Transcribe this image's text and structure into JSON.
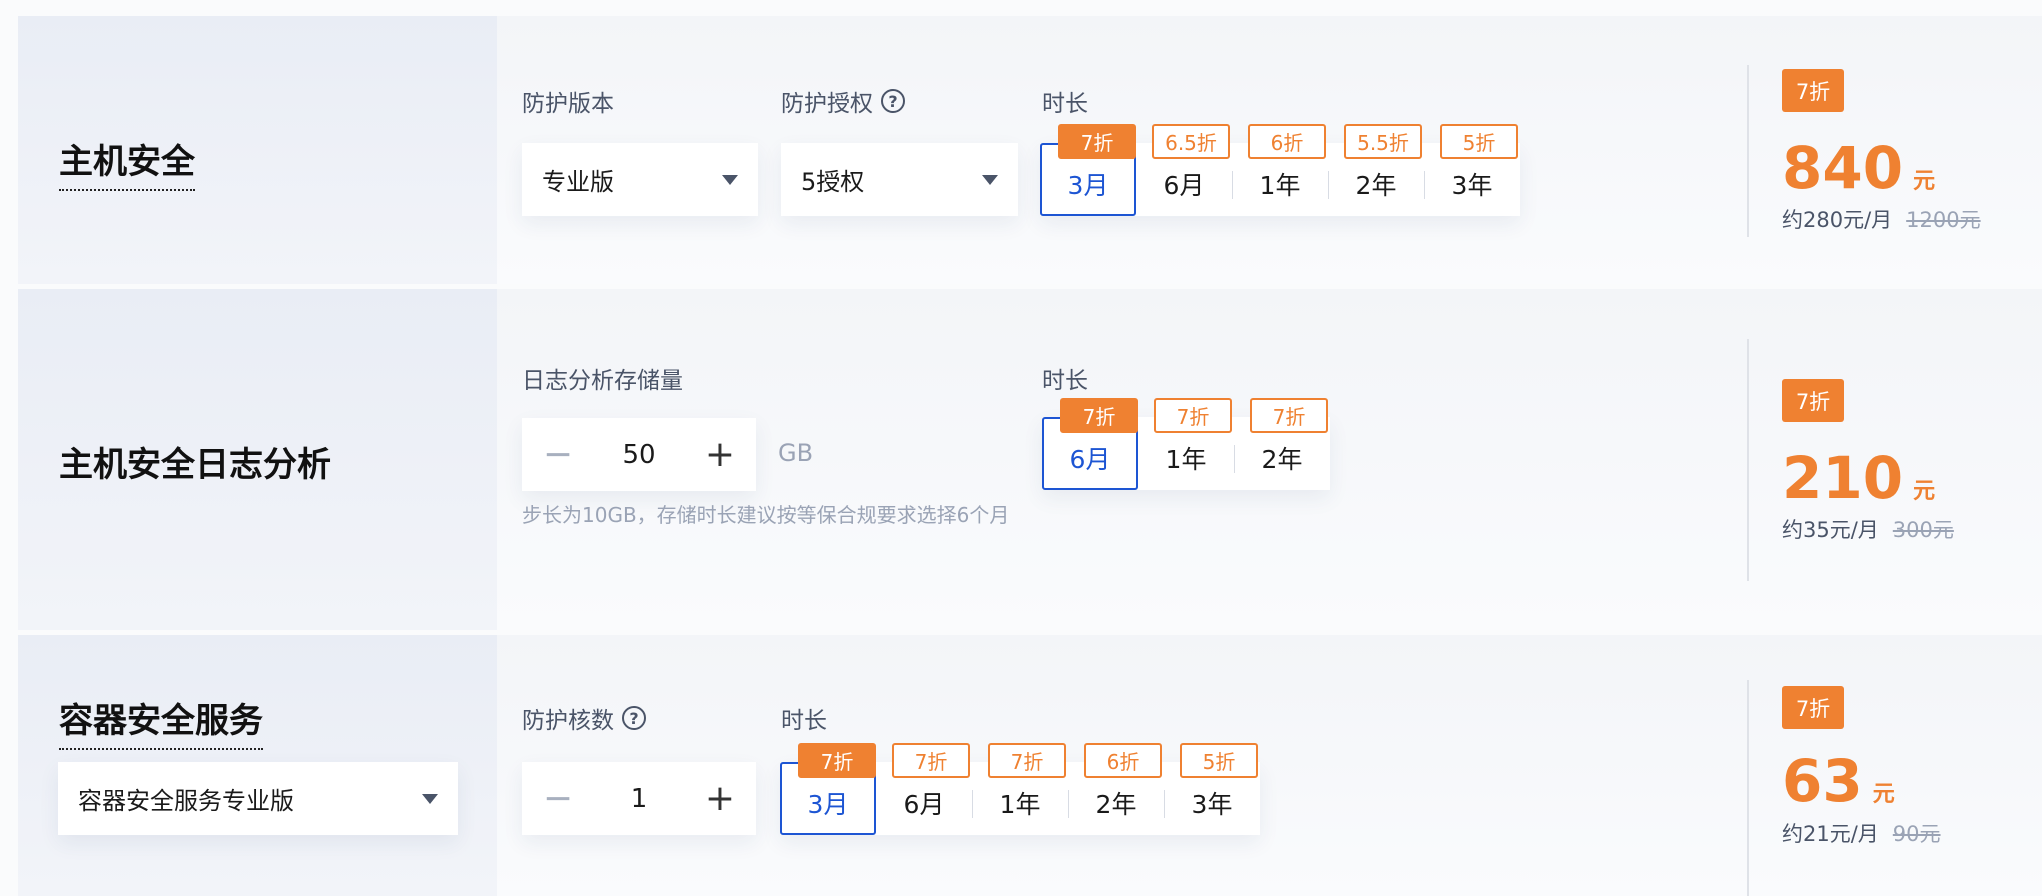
{
  "colors": {
    "accent": "#ef8131",
    "selected": "#1d55d3"
  },
  "rows": [
    {
      "title": "主机安全",
      "edition_label": "防护版本",
      "edition_value": "专业版",
      "license_label": "防护授权",
      "license_value": "5授权",
      "duration_label": "时长",
      "durations": [
        {
          "label": "3月",
          "discount": "7折",
          "selected": true
        },
        {
          "label": "6月",
          "discount": "6.5折"
        },
        {
          "label": "1年",
          "discount": "6折"
        },
        {
          "label": "2年",
          "discount": "5.5折"
        },
        {
          "label": "3年",
          "discount": "5折"
        }
      ],
      "price_badge": "7折",
      "price": "840",
      "currency": "元",
      "monthly": "约280元/月",
      "original": "1200元"
    },
    {
      "title": "主机安全日志分析",
      "storage_label": "日志分析存储量",
      "storage_value": "50",
      "storage_unit": "GB",
      "hint": "步长为10GB，存储时长建议按等保合规要求选择6个月",
      "duration_label": "时长",
      "durations": [
        {
          "label": "6月",
          "discount": "7折",
          "selected": true
        },
        {
          "label": "1年",
          "discount": "7折"
        },
        {
          "label": "2年",
          "discount": "7折"
        }
      ],
      "price_badge": "7折",
      "price": "210",
      "currency": "元",
      "monthly": "约35元/月",
      "original": "300元"
    },
    {
      "title": "容器安全服务",
      "edition_value": "容器安全服务专业版",
      "cores_label": "防护核数",
      "cores_value": "1",
      "duration_label": "时长",
      "durations": [
        {
          "label": "3月",
          "discount": "7折",
          "selected": true
        },
        {
          "label": "6月",
          "discount": "7折"
        },
        {
          "label": "1年",
          "discount": "7折"
        },
        {
          "label": "2年",
          "discount": "6折"
        },
        {
          "label": "3年",
          "discount": "5折"
        }
      ],
      "price_badge": "7折",
      "price": "63",
      "currency": "元",
      "monthly": "约21元/月",
      "original": "90元"
    }
  ],
  "icons": {
    "help": "question-circle-icon",
    "dropdown": "caret-down-icon",
    "minus": "minus-icon",
    "plus": "plus-icon"
  },
  "help_glyph": "?",
  "minus_glyph": "−",
  "plus_glyph": "+"
}
